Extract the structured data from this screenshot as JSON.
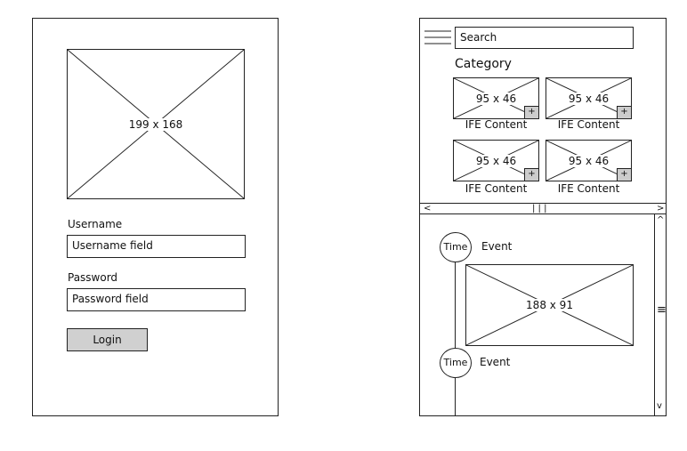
{
  "login": {
    "image_placeholder": "199 x 168",
    "username_label": "Username",
    "username_value": "Username field",
    "password_label": "Password",
    "password_value": "Password field",
    "login_button": "Login"
  },
  "browser": {
    "search_value": "Search",
    "menu_icon": "hamburger-menu-icon",
    "category_title": "Category",
    "items": [
      {
        "image": "95 x 46",
        "caption": "IFE Content",
        "add": "+"
      },
      {
        "image": "95 x 46",
        "caption": "IFE Content",
        "add": "+"
      },
      {
        "image": "95 x 46",
        "caption": "IFE Content",
        "add": "+"
      },
      {
        "image": "95 x 46",
        "caption": "IFE Content",
        "add": "+"
      }
    ],
    "hscroll": {
      "left": "<",
      "grip": "| | |",
      "right": ">"
    }
  },
  "timeline": {
    "events": [
      {
        "time": "Time",
        "event": "Event"
      },
      {
        "time": "Time",
        "event": "Event"
      }
    ],
    "image_placeholder": "188 x 91",
    "vscroll": {
      "up": "^",
      "grip": "≡",
      "down": "v"
    }
  }
}
